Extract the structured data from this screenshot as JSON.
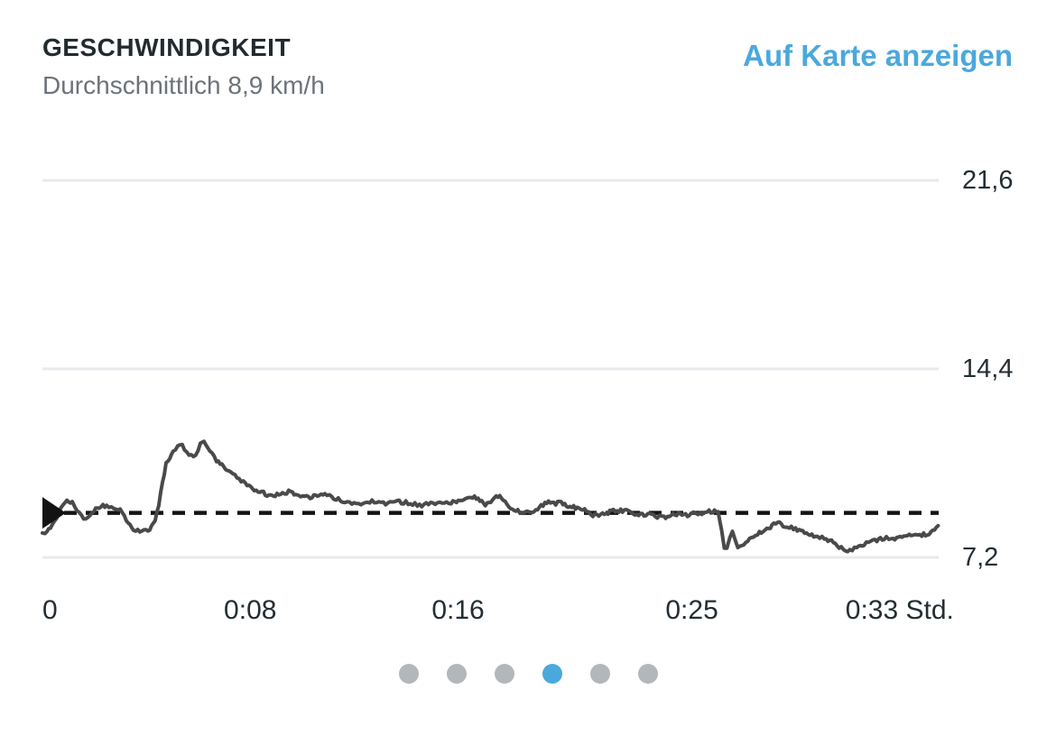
{
  "header": {
    "title": "GESCHWINDIGKEIT",
    "subtitle": "Durchschnittlich 8,9 km/h",
    "map_link_label": "Auf Karte anzeigen"
  },
  "colors": {
    "accent_blue": "#4BA8DD",
    "title_text": "#222B30",
    "subtitle_text": "#6D737A",
    "axis_text": "#232E33",
    "gridline": "#E9E9EE",
    "series_line": "#4A4A4A",
    "average_line": "#141414",
    "inactive_dot": "#B3B7BB",
    "background": "#FFFFFF"
  },
  "pagination": {
    "count": 6,
    "active_index": 3
  },
  "chart_data": {
    "type": "line",
    "title": "GESCHWINDIGKEIT",
    "subtitle": "Durchschnittlich 8,9 km/h",
    "unit": "km/h",
    "x_unit_suffix": "Std.",
    "average_value": 8.9,
    "grid": true,
    "legend": "none",
    "xlim_minutes": [
      0,
      34.5
    ],
    "ylim": [
      7.2,
      21.6
    ],
    "y_ticks": [
      {
        "value": 21.6,
        "label": "21,6"
      },
      {
        "value": 14.4,
        "label": "14,4"
      },
      {
        "value": 7.2,
        "label": "7,2"
      }
    ],
    "x_ticks": [
      {
        "minutes": 0,
        "label": "0"
      },
      {
        "minutes": 8,
        "label": "0:08"
      },
      {
        "minutes": 16,
        "label": "0:16"
      },
      {
        "minutes": 25,
        "label": "0:25"
      },
      {
        "minutes": 33,
        "label": "0:33"
      }
    ],
    "series": [
      {
        "name": "Geschwindigkeit",
        "points": [
          [
            0,
            8.06
          ],
          [
            0.1,
            8.16
          ],
          [
            0.38,
            8.41
          ],
          [
            0.63,
            8.92
          ],
          [
            0.87,
            9.34
          ],
          [
            1.15,
            9.27
          ],
          [
            1.42,
            8.85
          ],
          [
            1.67,
            8.68
          ],
          [
            1.91,
            8.92
          ],
          [
            2.19,
            9.13
          ],
          [
            2.47,
            9.2
          ],
          [
            2.74,
            9.13
          ],
          [
            2.99,
            9.03
          ],
          [
            3.23,
            8.61
          ],
          [
            3.51,
            8.27
          ],
          [
            3.75,
            8.16
          ],
          [
            3.99,
            8.23
          ],
          [
            4.2,
            8.34
          ],
          [
            4.34,
            8.58
          ],
          [
            4.48,
            9.2
          ],
          [
            4.62,
            10.06
          ],
          [
            4.76,
            10.75
          ],
          [
            4.9,
            10.99
          ],
          [
            5.03,
            11.2
          ],
          [
            5.21,
            11.4
          ],
          [
            5.38,
            11.47
          ],
          [
            5.56,
            11.26
          ],
          [
            5.73,
            11.09
          ],
          [
            5.9,
            11.13
          ],
          [
            6.08,
            11.54
          ],
          [
            6.22,
            11.64
          ],
          [
            6.35,
            11.44
          ],
          [
            6.53,
            11.16
          ],
          [
            6.7,
            10.92
          ],
          [
            6.91,
            10.75
          ],
          [
            7.12,
            10.54
          ],
          [
            7.33,
            10.37
          ],
          [
            7.57,
            10.2
          ],
          [
            7.81,
            10.02
          ],
          [
            8.09,
            9.85
          ],
          [
            8.37,
            9.71
          ],
          [
            8.65,
            9.61
          ],
          [
            8.96,
            9.58
          ],
          [
            9.24,
            9.65
          ],
          [
            9.48,
            9.71
          ],
          [
            9.76,
            9.61
          ],
          [
            10.03,
            9.54
          ],
          [
            10.31,
            9.51
          ],
          [
            10.59,
            9.54
          ],
          [
            10.87,
            9.58
          ],
          [
            11.22,
            9.47
          ],
          [
            11.56,
            9.34
          ],
          [
            11.91,
            9.3
          ],
          [
            12.26,
            9.27
          ],
          [
            12.6,
            9.34
          ],
          [
            12.95,
            9.3
          ],
          [
            13.3,
            9.27
          ],
          [
            13.65,
            9.34
          ],
          [
            13.99,
            9.3
          ],
          [
            14.34,
            9.23
          ],
          [
            14.69,
            9.2
          ],
          [
            15.03,
            9.27
          ],
          [
            15.38,
            9.34
          ],
          [
            15.73,
            9.3
          ],
          [
            16.01,
            9.37
          ],
          [
            16.28,
            9.47
          ],
          [
            16.56,
            9.51
          ],
          [
            16.84,
            9.37
          ],
          [
            17.05,
            9.2
          ],
          [
            17.26,
            9.34
          ],
          [
            17.47,
            9.54
          ],
          [
            17.67,
            9.47
          ],
          [
            17.88,
            9.2
          ],
          [
            18.09,
            9.06
          ],
          [
            18.3,
            8.99
          ],
          [
            18.51,
            8.92
          ],
          [
            18.72,
            8.96
          ],
          [
            18.92,
            8.99
          ],
          [
            19.13,
            9.13
          ],
          [
            19.34,
            9.27
          ],
          [
            19.55,
            9.34
          ],
          [
            19.76,
            9.27
          ],
          [
            19.97,
            9.3
          ],
          [
            20.17,
            9.2
          ],
          [
            20.38,
            9.13
          ],
          [
            20.59,
            9.06
          ],
          [
            20.87,
            8.99
          ],
          [
            21.11,
            8.85
          ],
          [
            21.35,
            8.78
          ],
          [
            21.63,
            8.85
          ],
          [
            21.91,
            8.96
          ],
          [
            22.19,
            8.99
          ],
          [
            22.47,
            8.96
          ],
          [
            22.74,
            8.89
          ],
          [
            23.02,
            8.82
          ],
          [
            23.3,
            8.85
          ],
          [
            23.58,
            8.78
          ],
          [
            23.85,
            8.72
          ],
          [
            24.13,
            8.78
          ],
          [
            24.41,
            8.85
          ],
          [
            24.69,
            8.78
          ],
          [
            24.97,
            8.85
          ],
          [
            25.24,
            8.89
          ],
          [
            25.52,
            8.92
          ],
          [
            25.8,
            8.96
          ],
          [
            26.01,
            8.92
          ],
          [
            26.15,
            8.16
          ],
          [
            26.25,
            7.58
          ],
          [
            26.35,
            7.54
          ],
          [
            26.46,
            7.92
          ],
          [
            26.56,
            8.16
          ],
          [
            26.67,
            7.82
          ],
          [
            26.77,
            7.54
          ],
          [
            26.91,
            7.61
          ],
          [
            27.08,
            7.82
          ],
          [
            27.29,
            7.96
          ],
          [
            27.53,
            8.1
          ],
          [
            27.81,
            8.23
          ],
          [
            28.09,
            8.41
          ],
          [
            28.3,
            8.51
          ],
          [
            28.51,
            8.44
          ],
          [
            28.75,
            8.37
          ],
          [
            28.99,
            8.3
          ],
          [
            29.27,
            8.2
          ],
          [
            29.55,
            8.1
          ],
          [
            29.83,
            7.99
          ],
          [
            30.1,
            7.92
          ],
          [
            30.38,
            7.82
          ],
          [
            30.59,
            7.65
          ],
          [
            30.83,
            7.51
          ],
          [
            31.08,
            7.48
          ],
          [
            31.35,
            7.54
          ],
          [
            31.63,
            7.68
          ],
          [
            31.88,
            7.79
          ],
          [
            32.12,
            7.85
          ],
          [
            32.4,
            7.92
          ],
          [
            32.67,
            7.96
          ],
          [
            32.95,
            7.92
          ],
          [
            33.23,
            7.99
          ],
          [
            33.51,
            8.03
          ],
          [
            33.78,
            8.06
          ],
          [
            34.06,
            8.1
          ],
          [
            34.27,
            8.23
          ],
          [
            34.48,
            8.41
          ]
        ]
      }
    ]
  }
}
